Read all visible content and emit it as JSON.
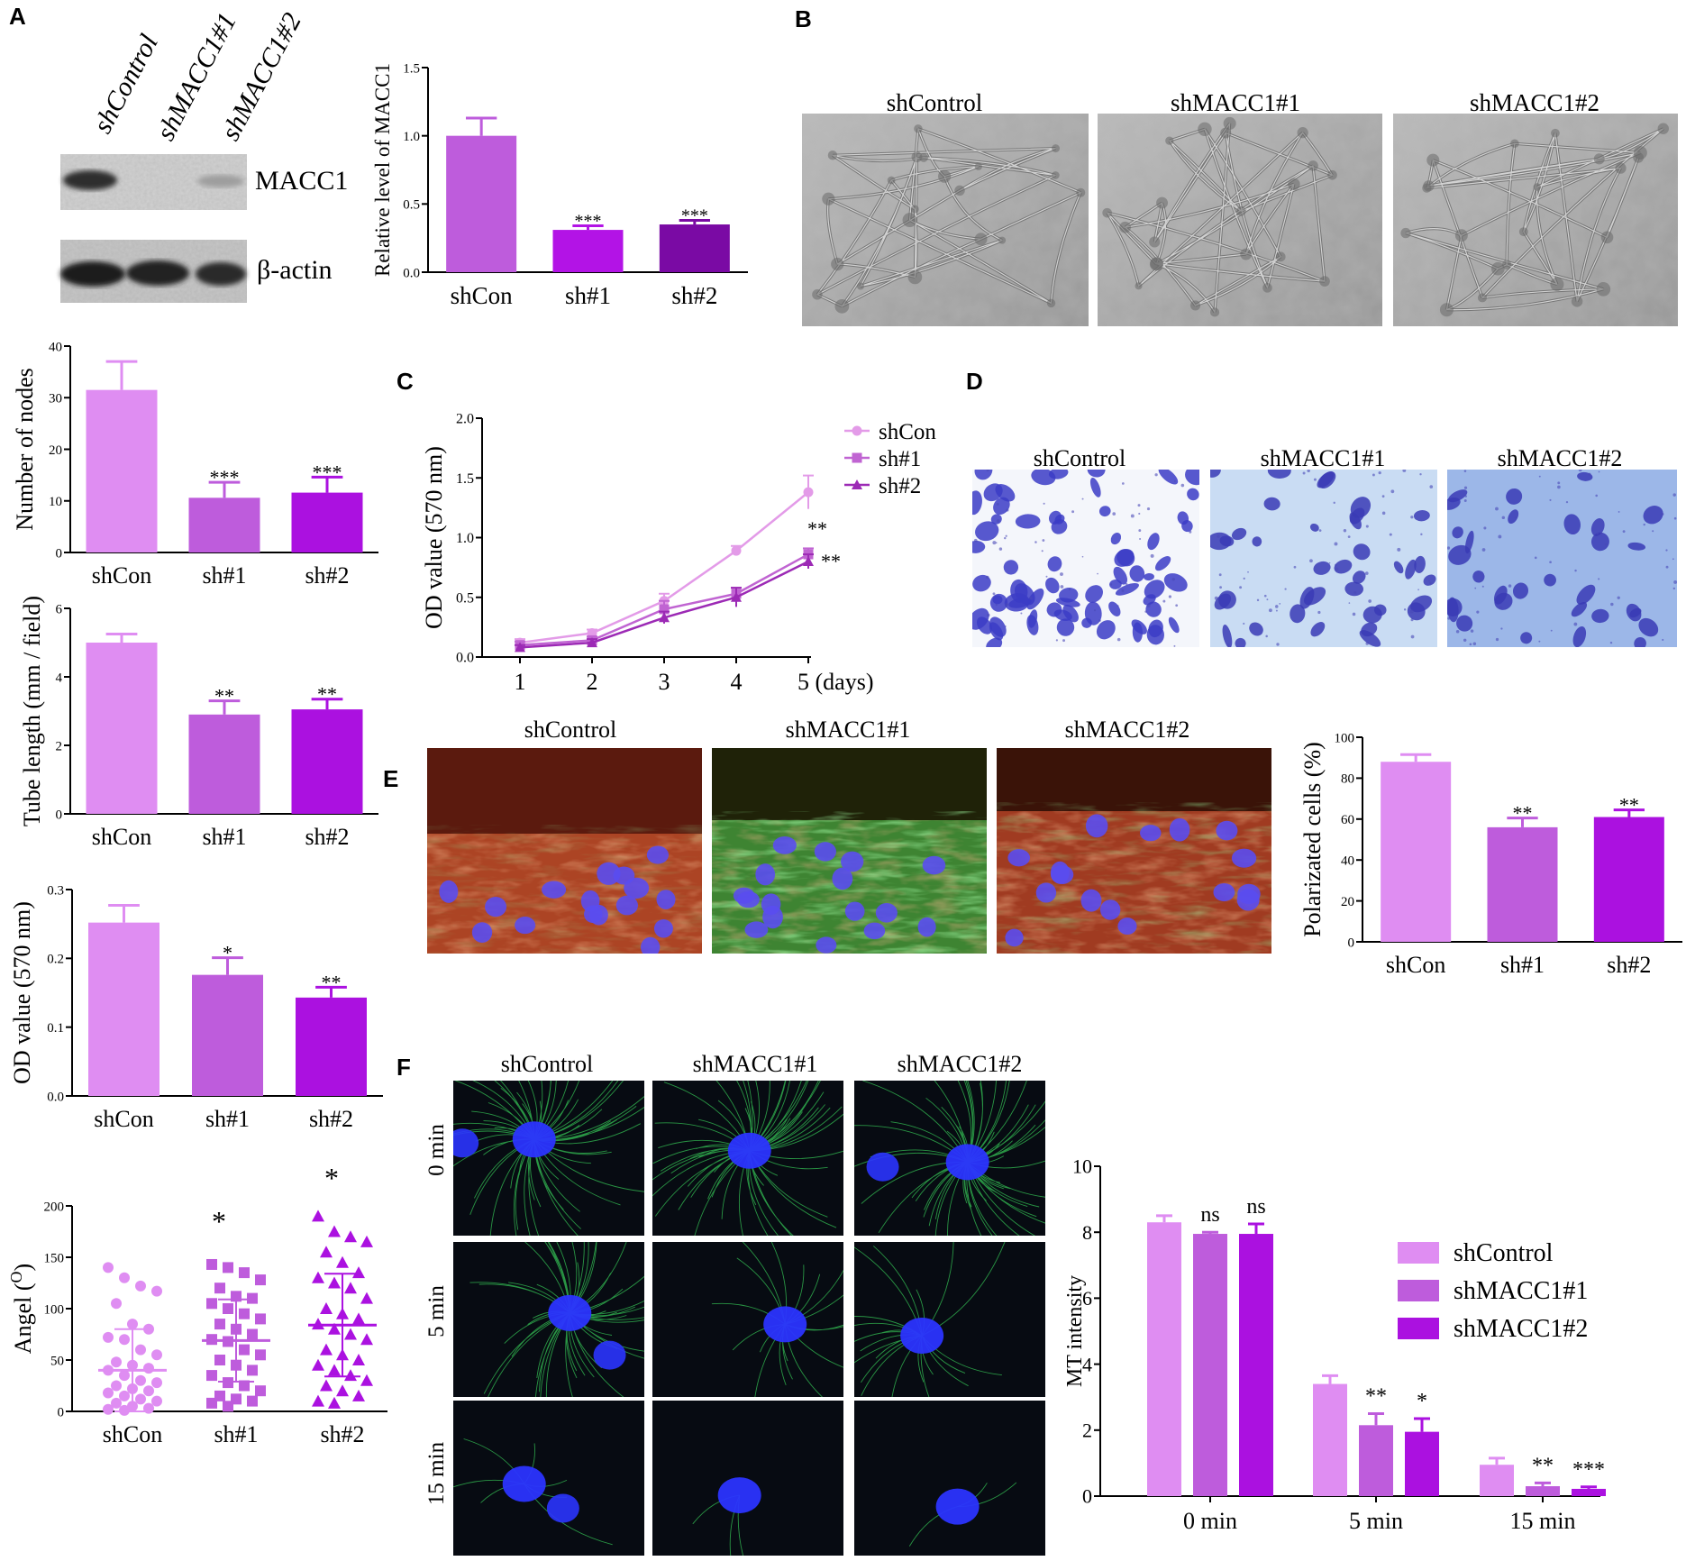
{
  "figure": {
    "panel_letters": [
      "A",
      "B",
      "C",
      "D",
      "E",
      "F"
    ],
    "colors": {
      "shCon": "#df8df2",
      "sh1": "#be5cdc",
      "sh2": "#ab11e0",
      "sh2_dark": "#7a0aa4",
      "sh1_A": "#b313e6",
      "line_shCon": "#e39be8",
      "line_sh1": "#c064d2",
      "line_sh2": "#9c2ab5"
    },
    "blot": {
      "lane_labels": [
        "shControl",
        "shMACC1#1",
        "shMACC1#2"
      ],
      "row_labels": [
        "MACC1",
        "β-actin"
      ]
    },
    "image_panels": {
      "B_titles": [
        "shControl",
        "shMACC1#1",
        "shMACC1#2"
      ],
      "D_titles": [
        "shControl",
        "shMACC1#1",
        "shMACC1#2"
      ],
      "E_titles": [
        "shControl",
        "shMACC1#1",
        "shMACC1#2"
      ],
      "F_titles": [
        "shControl",
        "shMACC1#1",
        "shMACC1#2"
      ],
      "F_rows": [
        "0 min",
        "5 min",
        "15 min"
      ]
    }
  },
  "chart_data": [
    {
      "id": "A_bar",
      "type": "bar",
      "categories": [
        "shCon",
        "sh#1",
        "sh#2"
      ],
      "values": [
        1.0,
        0.31,
        0.35
      ],
      "errors": [
        0.13,
        0.03,
        0.03
      ],
      "significance": [
        "",
        "***",
        "***"
      ],
      "ylabel": "Relative level of MACC1",
      "ylim": [
        0,
        1.5
      ],
      "yticks": [
        "0.0",
        "0.5",
        "1.0",
        "1.5"
      ]
    },
    {
      "id": "nodes_bar",
      "type": "bar",
      "categories": [
        "shCon",
        "sh#1",
        "sh#2"
      ],
      "values": [
        31.5,
        10.6,
        11.6
      ],
      "errors": [
        5.5,
        3.0,
        3.0
      ],
      "significance": [
        "",
        "***",
        "***"
      ],
      "ylabel": "Number of nodes",
      "ylim": [
        0,
        40
      ],
      "yticks": [
        "0",
        "10",
        "20",
        "30",
        "40"
      ]
    },
    {
      "id": "tube_bar",
      "type": "bar",
      "categories": [
        "shCon",
        "sh#1",
        "sh#2"
      ],
      "values": [
        5.0,
        2.9,
        3.05
      ],
      "errors": [
        0.25,
        0.4,
        0.3
      ],
      "significance": [
        "",
        "**",
        "**"
      ],
      "ylabel": "Tube length (mm / field)",
      "ylim": [
        0,
        6
      ],
      "yticks": [
        "0",
        "2",
        "4",
        "6"
      ]
    },
    {
      "id": "od_bar",
      "type": "bar",
      "categories": [
        "shCon",
        "sh#1",
        "sh#2"
      ],
      "values": [
        0.252,
        0.176,
        0.143
      ],
      "errors": [
        0.025,
        0.025,
        0.015
      ],
      "significance": [
        "",
        "*",
        "**"
      ],
      "ylabel": "OD value (570 nm)",
      "ylim": [
        0,
        0.3
      ],
      "yticks": [
        "0.0",
        "0.1",
        "0.2",
        "0.3"
      ]
    },
    {
      "id": "angle_scatter",
      "type": "scatter",
      "categories": [
        "shCon",
        "sh#1",
        "sh#2"
      ],
      "means": [
        40,
        69,
        84
      ],
      "sd": [
        40,
        40,
        50
      ],
      "points": [
        [
          140,
          130,
          122,
          117,
          105,
          85,
          80,
          72,
          70,
          60,
          55,
          48,
          45,
          42,
          40,
          35,
          30,
          28,
          25,
          22,
          20,
          18,
          15,
          12,
          10,
          8,
          5,
          3,
          2,
          1
        ],
        [
          143,
          140,
          135,
          128,
          120,
          112,
          110,
          105,
          100,
          95,
          90,
          85,
          80,
          75,
          70,
          68,
          60,
          55,
          50,
          45,
          40,
          35,
          28,
          25,
          20,
          15,
          12,
          10,
          8,
          5
        ],
        [
          190,
          175,
          170,
          165,
          155,
          145,
          135,
          130,
          125,
          120,
          110,
          100,
          95,
          90,
          85,
          80,
          75,
          70,
          60,
          55,
          50,
          45,
          40,
          35,
          30,
          25,
          20,
          15,
          10,
          8
        ]
      ],
      "significance": [
        "",
        "*",
        "*"
      ],
      "ylabel": "Angel (O)",
      "ylabel_main": "Angel (",
      "ylabel_sup": "O",
      "ylabel_end": ")",
      "ylim": [
        0,
        200
      ],
      "yticks": [
        "0",
        "50",
        "100",
        "150",
        "200"
      ]
    },
    {
      "id": "C_line",
      "type": "line",
      "x": [
        1,
        2,
        3,
        4,
        5
      ],
      "series": [
        {
          "name": "shCon",
          "values": [
            0.12,
            0.2,
            0.47,
            0.89,
            1.38
          ],
          "errors": [
            0.03,
            0.03,
            0.06,
            0.04,
            0.14
          ]
        },
        {
          "name": "sh#1",
          "values": [
            0.1,
            0.14,
            0.4,
            0.53,
            0.86
          ],
          "errors": [
            0.03,
            0.03,
            0.07,
            0.05,
            0.05
          ]
        },
        {
          "name": "sh#2",
          "values": [
            0.08,
            0.12,
            0.33,
            0.5,
            0.8
          ],
          "errors": [
            0.02,
            0.03,
            0.05,
            0.08,
            0.06
          ]
        }
      ],
      "xticks": [
        "1",
        "2",
        "3",
        "4",
        "5 (days)"
      ],
      "ylabel": "OD value (570 nm)",
      "ylim": [
        0,
        2.0
      ],
      "yticks": [
        "0.0",
        "0.5",
        "1.0",
        "1.5",
        "2.0"
      ],
      "annotations": [
        "**",
        "**"
      ],
      "legend": "top-right"
    },
    {
      "id": "E_bar",
      "type": "bar",
      "categories": [
        "shCon",
        "sh#1",
        "sh#2"
      ],
      "values": [
        88,
        56,
        61
      ],
      "errors": [
        3.5,
        4.5,
        3.5
      ],
      "significance": [
        "",
        "**",
        "**"
      ],
      "ylabel": "Polarizated cells (%)",
      "ylim": [
        0,
        100
      ],
      "yticks": [
        "0",
        "20",
        "40",
        "60",
        "80",
        "100"
      ]
    },
    {
      "id": "F_bar",
      "type": "bar",
      "categories": [
        "0 min",
        "5 min",
        "15 min"
      ],
      "series": [
        {
          "name": "shControl",
          "values": [
            8.3,
            3.4,
            0.95
          ],
          "errors": [
            0.2,
            0.25,
            0.2
          ]
        },
        {
          "name": "shMACC1#1",
          "values": [
            7.95,
            2.15,
            0.3
          ],
          "errors": [
            0.05,
            0.35,
            0.1
          ]
        },
        {
          "name": "shMACC1#2",
          "values": [
            7.95,
            1.95,
            0.22
          ],
          "errors": [
            0.3,
            0.4,
            0.06
          ]
        }
      ],
      "significance": [
        [
          "",
          "ns",
          "ns"
        ],
        [
          "",
          "**",
          "*"
        ],
        [
          "",
          "**",
          "***"
        ]
      ],
      "ylabel": "MT intensity",
      "ylim": [
        0,
        10
      ],
      "yticks": [
        "0",
        "2",
        "4",
        "6",
        "8",
        "10"
      ],
      "legend": "right"
    }
  ]
}
